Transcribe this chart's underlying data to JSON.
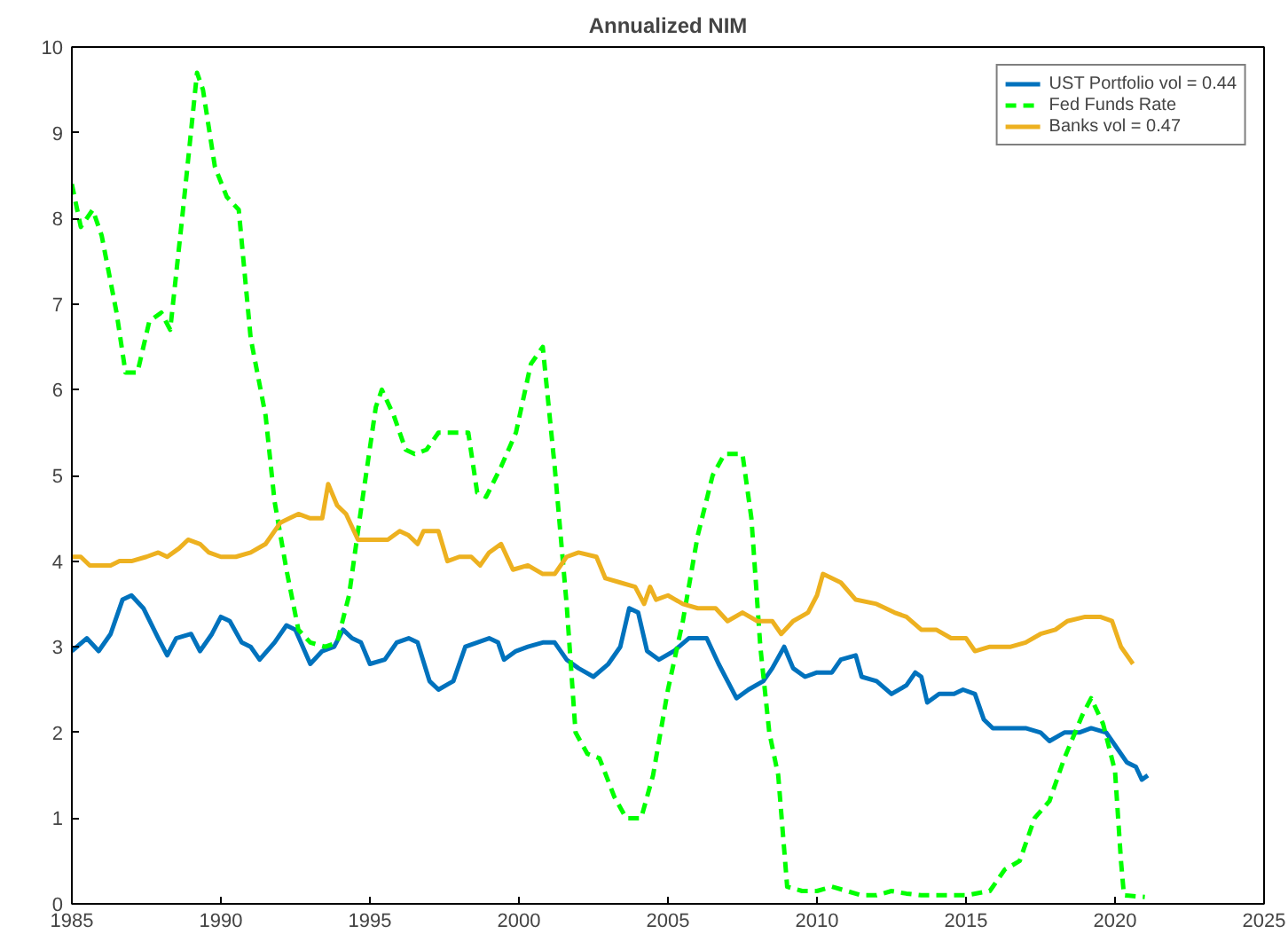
{
  "chart_data": {
    "type": "line",
    "title": "Annualized NIM",
    "xlim": [
      1985,
      2025
    ],
    "xticks": [
      1985,
      1990,
      1995,
      2000,
      2005,
      2010,
      2015,
      2020,
      2025
    ],
    "ylim": [
      0,
      10
    ],
    "yticks": [
      0,
      1,
      2,
      3,
      4,
      5,
      6,
      7,
      8,
      9,
      10
    ],
    "grid": false,
    "legend": "top right",
    "series": [
      {
        "name": "UST Portfolio vol = 0.44",
        "color": "#0072bd",
        "line_style": "solid",
        "x": [
          1985.0,
          1985.5,
          1985.9,
          1986.3,
          1986.7,
          1987.0,
          1987.4,
          1987.9,
          1988.2,
          1988.5,
          1989.0,
          1989.3,
          1989.7,
          1990.0,
          1990.3,
          1990.7,
          1991.0,
          1991.3,
          1991.8,
          1992.2,
          1992.5,
          1993.0,
          1993.4,
          1993.8,
          1994.1,
          1994.4,
          1994.7,
          1995.0,
          1995.5,
          1995.9,
          1996.3,
          1996.6,
          1997.0,
          1997.3,
          1997.8,
          1998.2,
          1998.6,
          1999.0,
          1999.3,
          1999.5,
          1999.9,
          2000.3,
          2000.8,
          2001.2,
          2001.6,
          2002.0,
          2002.5,
          2003.0,
          2003.4,
          2003.7,
          2004.0,
          2004.3,
          2004.7,
          2005.2,
          2005.7,
          2006.3,
          2006.7,
          2007.3,
          2007.7,
          2008.2,
          2008.5,
          2008.9,
          2009.2,
          2009.6,
          2010.0,
          2010.5,
          2010.8,
          2011.3,
          2011.5,
          2012.0,
          2012.5,
          2013.0,
          2013.3,
          2013.5,
          2013.7,
          2014.1,
          2014.6,
          2014.9,
          2015.3,
          2015.6,
          2015.9,
          2016.5,
          2017.0,
          2017.5,
          2017.8,
          2018.3,
          2018.8,
          2019.2,
          2019.7,
          2020.0,
          2020.4,
          2020.7,
          2020.9,
          2021.1
        ],
        "values": [
          2.95,
          3.1,
          2.95,
          3.15,
          3.55,
          3.6,
          3.45,
          3.1,
          2.9,
          3.1,
          3.15,
          2.95,
          3.15,
          3.35,
          3.3,
          3.05,
          3.0,
          2.85,
          3.05,
          3.25,
          3.2,
          2.8,
          2.95,
          3.0,
          3.2,
          3.1,
          3.05,
          2.8,
          2.85,
          3.05,
          3.1,
          3.05,
          2.6,
          2.5,
          2.6,
          3.0,
          3.05,
          3.1,
          3.05,
          2.85,
          2.95,
          3.0,
          3.05,
          3.05,
          2.85,
          2.75,
          2.65,
          2.8,
          3.0,
          3.45,
          3.4,
          2.95,
          2.85,
          2.95,
          3.1,
          3.1,
          2.8,
          2.4,
          2.5,
          2.6,
          2.75,
          3.0,
          2.75,
          2.65,
          2.7,
          2.7,
          2.85,
          2.9,
          2.65,
          2.6,
          2.45,
          2.55,
          2.7,
          2.65,
          2.35,
          2.45,
          2.45,
          2.5,
          2.45,
          2.15,
          2.05,
          2.05,
          2.05,
          2.0,
          1.9,
          2.0,
          2.0,
          2.05,
          2.0,
          1.85,
          1.65,
          1.6,
          1.45,
          1.5
        ]
      },
      {
        "name": "Fed Funds Rate",
        "color": "#00ff00",
        "line_style": "dashed",
        "x": [
          1985.0,
          1985.3,
          1985.7,
          1986.0,
          1986.5,
          1986.8,
          1987.2,
          1987.6,
          1988.0,
          1988.3,
          1988.7,
          1989.2,
          1989.4,
          1989.8,
          1990.2,
          1990.6,
          1991.0,
          1991.5,
          1991.8,
          1992.2,
          1992.6,
          1993.0,
          1993.5,
          1993.9,
          1994.3,
          1994.7,
          1995.2,
          1995.4,
          1995.8,
          1996.2,
          1996.5,
          1996.9,
          1997.3,
          1997.8,
          1998.3,
          1998.6,
          1998.9,
          1999.4,
          1999.9,
          2000.4,
          2000.8,
          2001.2,
          2001.6,
          2001.9,
          2002.3,
          2002.7,
          2003.2,
          2003.6,
          2004.1,
          2004.5,
          2005.0,
          2005.5,
          2006.0,
          2006.5,
          2006.9,
          2007.5,
          2007.8,
          2008.1,
          2008.4,
          2008.7,
          2009.0,
          2009.5,
          2010.0,
          2010.5,
          2011.0,
          2011.5,
          2012.0,
          2012.5,
          2013.0,
          2013.5,
          2014.0,
          2015.0,
          2015.8,
          2016.3,
          2016.8,
          2017.3,
          2017.8,
          2018.3,
          2018.9,
          2019.2,
          2019.6,
          2020.0,
          2020.2,
          2020.3,
          2021.0
        ],
        "values": [
          8.4,
          7.9,
          8.1,
          7.8,
          6.9,
          6.2,
          6.2,
          6.8,
          6.9,
          6.7,
          8.0,
          9.7,
          9.5,
          8.6,
          8.25,
          8.1,
          6.6,
          5.7,
          4.7,
          3.9,
          3.2,
          3.05,
          3.0,
          3.05,
          3.6,
          4.6,
          5.8,
          6.0,
          5.7,
          5.3,
          5.25,
          5.3,
          5.5,
          5.5,
          5.5,
          4.8,
          4.75,
          5.1,
          5.5,
          6.3,
          6.5,
          5.1,
          3.5,
          2.0,
          1.75,
          1.7,
          1.25,
          1.0,
          1.0,
          1.5,
          2.5,
          3.3,
          4.3,
          5.0,
          5.25,
          5.25,
          4.5,
          3.0,
          2.0,
          1.5,
          0.2,
          0.15,
          0.15,
          0.2,
          0.15,
          0.1,
          0.1,
          0.15,
          0.12,
          0.1,
          0.1,
          0.1,
          0.15,
          0.4,
          0.5,
          1.0,
          1.2,
          1.7,
          2.2,
          2.4,
          2.1,
          1.55,
          0.5,
          0.1,
          0.08
        ]
      },
      {
        "name": "Banks vol = 0.47",
        "color": "#edb120",
        "line_style": "solid",
        "x": [
          1985.0,
          1985.3,
          1985.6,
          1986.3,
          1986.6,
          1987.0,
          1987.5,
          1987.9,
          1988.2,
          1988.6,
          1988.9,
          1989.3,
          1989.6,
          1990.0,
          1990.5,
          1991.0,
          1991.5,
          1992.0,
          1992.3,
          1992.6,
          1993.0,
          1993.4,
          1993.6,
          1993.9,
          1994.2,
          1994.6,
          1995.1,
          1995.6,
          1996.0,
          1996.3,
          1996.6,
          1996.8,
          1997.3,
          1997.6,
          1998.0,
          1998.4,
          1998.7,
          1999.0,
          1999.4,
          1999.8,
          2000.3,
          2000.8,
          2001.2,
          2001.6,
          2002.0,
          2002.6,
          2002.9,
          2003.4,
          2003.9,
          2004.2,
          2004.4,
          2004.6,
          2005.0,
          2005.5,
          2006.0,
          2006.6,
          2007.0,
          2007.5,
          2008.0,
          2008.5,
          2008.8,
          2009.2,
          2009.7,
          2010.0,
          2010.2,
          2010.8,
          2011.3,
          2012.0,
          2012.6,
          2013.0,
          2013.5,
          2014.0,
          2014.5,
          2015.0,
          2015.3,
          2015.8,
          2016.5,
          2017.0,
          2017.5,
          2018.0,
          2018.4,
          2019.0,
          2019.5,
          2019.9,
          2020.2,
          2020.5,
          2020.6
        ],
        "values": [
          4.05,
          4.05,
          3.95,
          3.95,
          4.0,
          4.0,
          4.05,
          4.1,
          4.05,
          4.15,
          4.25,
          4.2,
          4.1,
          4.05,
          4.05,
          4.1,
          4.2,
          4.45,
          4.5,
          4.55,
          4.5,
          4.5,
          4.9,
          4.65,
          4.55,
          4.25,
          4.25,
          4.25,
          4.35,
          4.3,
          4.2,
          4.35,
          4.35,
          4.0,
          4.05,
          4.05,
          3.95,
          4.1,
          4.2,
          3.9,
          3.95,
          3.85,
          3.85,
          4.05,
          4.1,
          4.05,
          3.8,
          3.75,
          3.7,
          3.5,
          3.7,
          3.55,
          3.6,
          3.5,
          3.45,
          3.45,
          3.3,
          3.4,
          3.3,
          3.3,
          3.15,
          3.3,
          3.4,
          3.6,
          3.85,
          3.75,
          3.55,
          3.5,
          3.4,
          3.35,
          3.2,
          3.2,
          3.1,
          3.1,
          2.95,
          3.0,
          3.0,
          3.05,
          3.15,
          3.2,
          3.3,
          3.35,
          3.35,
          3.3,
          3.0,
          2.85,
          2.8
        ]
      }
    ]
  }
}
